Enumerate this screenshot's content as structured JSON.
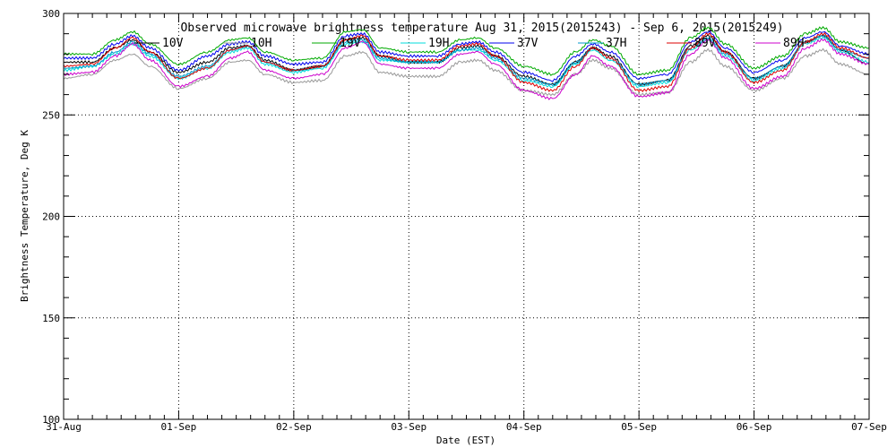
{
  "chart_data": {
    "type": "line",
    "title": "Observed microwave brightness temperature Aug 31, 2015(2015243) - Sep  6, 2015(2015249)",
    "xlabel": "Date (EST)",
    "ylabel": "Brightness Temperature, Deg K",
    "ylim": [
      100,
      300
    ],
    "yticks": [
      100,
      150,
      200,
      250,
      300
    ],
    "xlim": [
      0,
      7
    ],
    "xticks": [
      {
        "x": 0,
        "label": "31-Aug"
      },
      {
        "x": 1,
        "label": "01-Sep"
      },
      {
        "x": 2,
        "label": "02-Sep"
      },
      {
        "x": 3,
        "label": "03-Sep"
      },
      {
        "x": 4,
        "label": "04-Sep"
      },
      {
        "x": 5,
        "label": "05-Sep"
      },
      {
        "x": 6,
        "label": "06-Sep"
      },
      {
        "x": 7,
        "label": "07-Sep"
      }
    ],
    "grid": true,
    "legend_position": "top",
    "x": [
      0,
      0.25,
      0.45,
      0.6,
      0.75,
      1.0,
      1.25,
      1.45,
      1.6,
      1.75,
      2.0,
      2.25,
      2.45,
      2.6,
      2.75,
      3.0,
      3.25,
      3.45,
      3.6,
      3.75,
      4.0,
      4.25,
      4.45,
      4.6,
      4.75,
      5.0,
      5.25,
      5.45,
      5.6,
      5.75,
      6.0,
      6.25,
      6.45,
      6.6,
      6.75,
      7.0
    ],
    "series": [
      {
        "name": "10V",
        "color": "#000000",
        "values": [
          276,
          276,
          283,
          287,
          281,
          271,
          276,
          283,
          284,
          277,
          272,
          274,
          287,
          288,
          279,
          276,
          276,
          283,
          284,
          279,
          269,
          265,
          276,
          283,
          279,
          265,
          267,
          284,
          289,
          281,
          268,
          274,
          286,
          289,
          282,
          275
        ]
      },
      {
        "name": "10H",
        "color": "#999999",
        "values": [
          268,
          270,
          277,
          280,
          274,
          263,
          268,
          276,
          277,
          270,
          266,
          267,
          279,
          281,
          271,
          269,
          269,
          276,
          277,
          272,
          262,
          260,
          270,
          277,
          273,
          260,
          261,
          276,
          282,
          274,
          262,
          268,
          279,
          282,
          275,
          270
        ]
      },
      {
        "name": "19V",
        "color": "#00aa00",
        "values": [
          280,
          280,
          287,
          291,
          285,
          275,
          281,
          287,
          288,
          281,
          277,
          278,
          291,
          292,
          283,
          281,
          281,
          287,
          288,
          283,
          274,
          270,
          281,
          287,
          284,
          270,
          272,
          288,
          293,
          285,
          273,
          279,
          290,
          293,
          286,
          283
        ]
      },
      {
        "name": "19H",
        "color": "#00dddd",
        "values": [
          272,
          274,
          280,
          285,
          279,
          268,
          273,
          281,
          283,
          275,
          271,
          273,
          285,
          286,
          277,
          276,
          276,
          282,
          282,
          277,
          267,
          264,
          275,
          282,
          277,
          264,
          266,
          282,
          287,
          279,
          267,
          273,
          285,
          288,
          281,
          276
        ]
      },
      {
        "name": "37V",
        "color": "#0000ee",
        "values": [
          278,
          278,
          285,
          289,
          283,
          272,
          279,
          285,
          286,
          279,
          275,
          276,
          289,
          290,
          281,
          279,
          279,
          285,
          286,
          281,
          271,
          267,
          279,
          285,
          281,
          268,
          270,
          286,
          291,
          283,
          271,
          277,
          288,
          291,
          284,
          280
        ]
      },
      {
        "name": "37H",
        "color": "#0099cc",
        "values": [
          273,
          274,
          281,
          286,
          280,
          269,
          274,
          282,
          284,
          276,
          272,
          274,
          286,
          287,
          278,
          276,
          276,
          282,
          283,
          278,
          268,
          265,
          276,
          283,
          278,
          265,
          267,
          283,
          288,
          280,
          268,
          274,
          286,
          289,
          282,
          278
        ]
      },
      {
        "name": "89V",
        "color": "#dd0000",
        "values": [
          274,
          275,
          283,
          288,
          281,
          268,
          273,
          282,
          284,
          276,
          272,
          274,
          287,
          289,
          279,
          277,
          277,
          284,
          285,
          279,
          266,
          262,
          274,
          283,
          278,
          262,
          264,
          283,
          290,
          281,
          266,
          272,
          286,
          290,
          283,
          278
        ]
      },
      {
        "name": "89H",
        "color": "#cc00cc",
        "values": [
          270,
          271,
          279,
          285,
          277,
          264,
          269,
          278,
          281,
          272,
          268,
          270,
          283,
          286,
          275,
          273,
          273,
          280,
          281,
          275,
          262,
          258,
          270,
          279,
          274,
          259,
          261,
          280,
          287,
          278,
          263,
          269,
          283,
          287,
          280,
          275
        ]
      }
    ]
  }
}
